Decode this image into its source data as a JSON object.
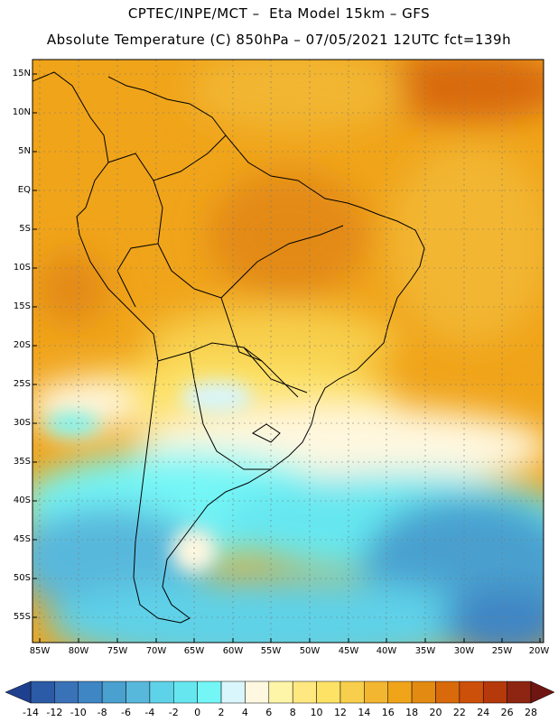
{
  "title_line1": "CPTEC/INPE/MCT –  Eta Model 15km – GFS",
  "title_line2": "Absolute Temperature (C) 850hPa – 07/05/2021 12UTC fct=139h",
  "lat_labels": [
    "15N",
    "10N",
    "5N",
    "EQ",
    "5S",
    "10S",
    "15S",
    "20S",
    "25S",
    "30S",
    "35S",
    "40S",
    "45S",
    "50S",
    "55S"
  ],
  "lon_labels": [
    "85W",
    "80W",
    "75W",
    "70W",
    "65W",
    "60W",
    "55W",
    "50W",
    "45W",
    "40W",
    "35W",
    "30W",
    "25W",
    "20W"
  ],
  "colorbar_labels": [
    "-14",
    "-12",
    "-10",
    "-8",
    "-6",
    "-4",
    "-2",
    "0",
    "2",
    "4",
    "6",
    "8",
    "10",
    "12",
    "14",
    "16",
    "18",
    "20",
    "22",
    "24",
    "26",
    "28"
  ],
  "colorbar_colors": [
    "#1f3f8f",
    "#2b5aa6",
    "#3a72b8",
    "#3f86c4",
    "#4aa0cf",
    "#58b8dc",
    "#5ed2e8",
    "#66e7f0",
    "#74f6f6",
    "#d8f6fb",
    "#fff8e0",
    "#fff5a8",
    "#ffe880",
    "#fde266",
    "#f7cf4c",
    "#f2b630",
    "#f0a41a",
    "#e38a13",
    "#d86a0c",
    "#cc4f0a",
    "#b5390b",
    "#8e2513",
    "#6f1512"
  ]
}
